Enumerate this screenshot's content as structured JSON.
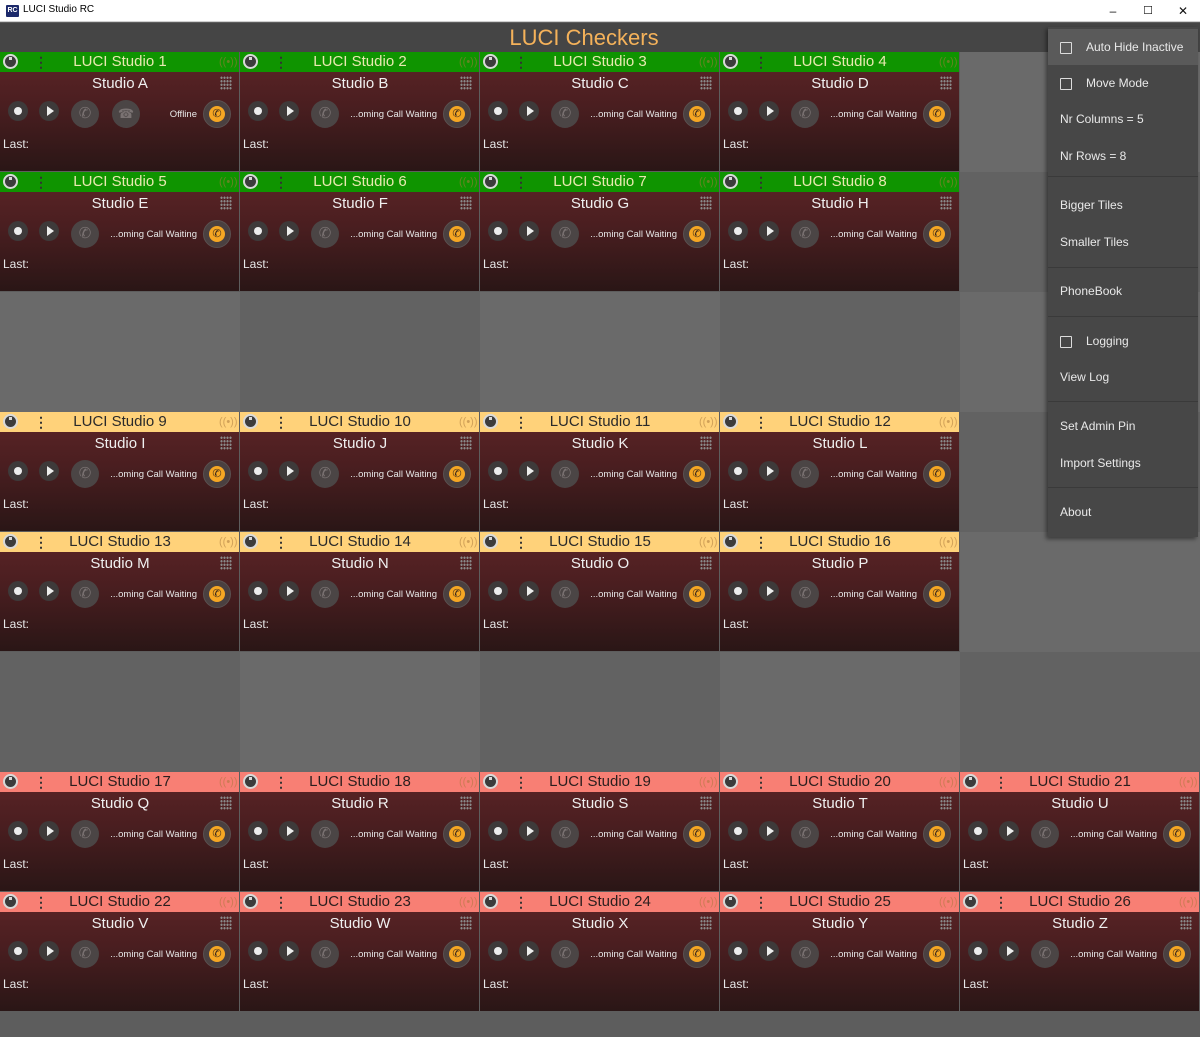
{
  "window": {
    "app_icon": "RC",
    "title": "LUCI Studio RC",
    "min": "–",
    "max": "☐",
    "close": "✕"
  },
  "header": {
    "title": "LUCI Checkers"
  },
  "menu": {
    "auto_hide": "Auto Hide Inactive",
    "move_mode": "Move Mode",
    "nr_columns": "Nr Columns = 5",
    "nr_rows": "Nr Rows = 8",
    "bigger": "Bigger Tiles",
    "smaller": "Smaller Tiles",
    "phonebook": "PhoneBook",
    "logging": "Logging",
    "view_log": "View Log",
    "admin_pin": "Set Admin Pin",
    "import": "Import Settings",
    "about": "About"
  },
  "tiles": [
    {
      "name": "LUCI Studio 1",
      "studio": "Studio A",
      "status": "Offline",
      "last": "Last:",
      "color": "green"
    },
    {
      "name": "LUCI Studio 2",
      "studio": "Studio B",
      "status": "...oming Call Waiting",
      "last": "Last:",
      "color": "green"
    },
    {
      "name": "LUCI Studio 3",
      "studio": "Studio C",
      "status": "...oming Call Waiting",
      "last": "Last:",
      "color": "green"
    },
    {
      "name": "LUCI Studio 4",
      "studio": "Studio D",
      "status": "...oming Call Waiting",
      "last": "Last:",
      "color": "green"
    },
    {
      "name": "LUCI Studio 5",
      "studio": "Studio E",
      "status": "...oming Call Waiting",
      "last": "Last:",
      "color": "green"
    },
    {
      "name": "LUCI Studio 6",
      "studio": "Studio F",
      "status": "...oming Call Waiting",
      "last": "Last:",
      "color": "green"
    },
    {
      "name": "LUCI Studio 7",
      "studio": "Studio G",
      "status": "...oming Call Waiting",
      "last": "Last:",
      "color": "green"
    },
    {
      "name": "LUCI Studio 8",
      "studio": "Studio H",
      "status": "...oming Call Waiting",
      "last": "Last:",
      "color": "green"
    },
    {
      "name": "LUCI Studio 9",
      "studio": "Studio I",
      "status": "...oming Call Waiting",
      "last": "Last:",
      "color": "yellow"
    },
    {
      "name": "LUCI Studio 10",
      "studio": "Studio J",
      "status": "...oming Call Waiting",
      "last": "Last:",
      "color": "yellow"
    },
    {
      "name": "LUCI Studio 11",
      "studio": "Studio K",
      "status": "...oming Call Waiting",
      "last": "Last:",
      "color": "yellow"
    },
    {
      "name": "LUCI Studio 12",
      "studio": "Studio L",
      "status": "...oming Call Waiting",
      "last": "Last:",
      "color": "yellow"
    },
    {
      "name": "LUCI Studio 13",
      "studio": "Studio M",
      "status": "...oming Call Waiting",
      "last": "Last:",
      "color": "yellow"
    },
    {
      "name": "LUCI Studio 14",
      "studio": "Studio N",
      "status": "...oming Call Waiting",
      "last": "Last:",
      "color": "yellow"
    },
    {
      "name": "LUCI Studio 15",
      "studio": "Studio O",
      "status": "...oming Call Waiting",
      "last": "Last:",
      "color": "yellow"
    },
    {
      "name": "LUCI Studio 16",
      "studio": "Studio P",
      "status": "...oming Call Waiting",
      "last": "Last:",
      "color": "yellow"
    },
    {
      "name": "LUCI Studio 17",
      "studio": "Studio Q",
      "status": "...oming Call Waiting",
      "last": "Last:",
      "color": "red"
    },
    {
      "name": "LUCI Studio 18",
      "studio": "Studio R",
      "status": "...oming Call Waiting",
      "last": "Last:",
      "color": "red"
    },
    {
      "name": "LUCI Studio 19",
      "studio": "Studio S",
      "status": "...oming Call Waiting",
      "last": "Last:",
      "color": "red"
    },
    {
      "name": "LUCI Studio 20",
      "studio": "Studio T",
      "status": "...oming Call Waiting",
      "last": "Last:",
      "color": "red"
    },
    {
      "name": "LUCI Studio 21",
      "studio": "Studio U",
      "status": "...oming Call Waiting",
      "last": "Last:",
      "color": "red"
    },
    {
      "name": "LUCI Studio 22",
      "studio": "Studio V",
      "status": "...oming Call Waiting",
      "last": "Last:",
      "color": "red"
    },
    {
      "name": "LUCI Studio 23",
      "studio": "Studio W",
      "status": "...oming Call Waiting",
      "last": "Last:",
      "color": "red"
    },
    {
      "name": "LUCI Studio 24",
      "studio": "Studio X",
      "status": "...oming Call Waiting",
      "last": "Last:",
      "color": "red"
    },
    {
      "name": "LUCI Studio 25",
      "studio": "Studio Y",
      "status": "...oming Call Waiting",
      "last": "Last:",
      "color": "red"
    },
    {
      "name": "LUCI Studio 26",
      "studio": "Studio Z",
      "status": "...oming Call Waiting",
      "last": "Last:",
      "color": "red"
    }
  ]
}
